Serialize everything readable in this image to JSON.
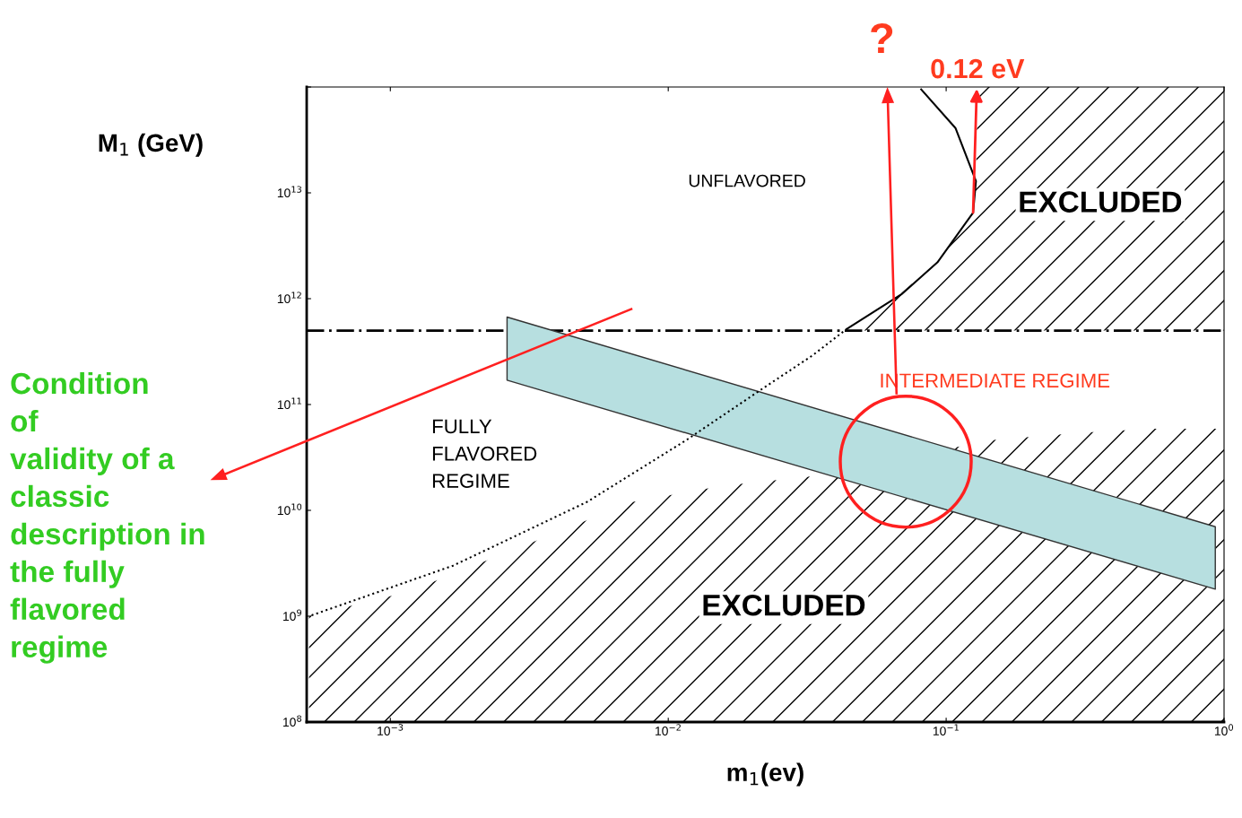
{
  "chart_data": {
    "type": "line",
    "log": "xy",
    "xlabel": "m$_{1}$(ev)",
    "ylabel": "M$_{1}$ (GeV)",
    "xlim": [
      0.0005,
      1
    ],
    "ylim": [
      100000000.0,
      100000000000000.0
    ],
    "xticks": [
      {
        "value": 0.001,
        "label": "10$^{−3}$"
      },
      {
        "value": 0.01,
        "label": "10$^{−2}$"
      },
      {
        "value": 0.1,
        "label": "10$^{−1}$"
      },
      {
        "value": 1,
        "label": "10$^{0}$"
      }
    ],
    "yticks": [
      {
        "value": 100000000.0,
        "label": "10$^{8}$"
      },
      {
        "value": 1000000000.0,
        "label": "10$^{9}$"
      },
      {
        "value": 10000000000.0,
        "label": "10$^{10}$"
      },
      {
        "value": 100000000000.0,
        "label": "10$^{11}$"
      },
      {
        "value": 1000000000000.0,
        "label": "10$^{12}$"
      },
      {
        "value": 10000000000000.0,
        "label": "10$^{13}$"
      },
      {
        "value": 100000000000000.0,
        "label": null
      }
    ],
    "grid": false,
    "legend": false,
    "series": [
      {
        "type": "area",
        "color": "#000000",
        "x": [
          0.00051,
          0.00116,
          0.0035,
          0.0074,
          0.0156,
          0.033,
          0.145,
          0.305,
          0.552,
          1.0
        ],
        "values": [
          1000000000.0,
          1700000000.0,
          5400000000.0,
          12000000000.0,
          17000000000.0,
          21000000000.0,
          46000000000.0,
          54000000000.0,
          59000000000.0,
          59000000000.0
        ]
      },
      {
        "type": "area",
        "color": "#000000",
        "x": [
          0.044,
          0.069,
          0.093,
          0.125,
          0.128,
          0.13,
          1.0
        ],
        "values": [
          520000000000.0,
          1100000000000.0,
          2200000000000.0,
          6500000000000.0,
          12900000000000.0,
          100000000000000.0,
          100000000000000.0
        ]
      },
      {
        "color": "#000000",
        "line_style": "solid",
        "x": [
          0.0813,
          0.108,
          0.128,
          0.125,
          0.093,
          0.069,
          0.044
        ],
        "values": [
          95000000000000.0,
          41000000000000.0,
          12900000000000.0,
          6500000000000.0,
          2200000000000.0,
          1100000000000.0,
          520000000000.0
        ]
      },
      {
        "color": "#000000",
        "line_style": "dotted",
        "x": [
          0.044,
          0.033,
          0.0226,
          0.0116,
          0.0051,
          0.00168,
          0.00051
        ],
        "values": [
          520000000000.0,
          290000000000.0,
          150000000000.0,
          46000000000.0,
          12000000000.0,
          3000000000.0,
          1000000000.0
        ]
      },
      {
        "color": "#b7dfe0",
        "x": [
          0.00263,
          0.93
        ],
        "values": [
          null,
          null
        ],
        "lower": [
          170000000000.0,
          1800000000.0
        ],
        "upper": [
          670000000000.0,
          7000000000.0
        ]
      }
    ],
    "ref_lines": [
      {
        "axis": "y",
        "value": 500000000000.0,
        "label": null,
        "color": "#000000",
        "line_style": "dashed"
      }
    ],
    "annotations": [
      "UNFLAVORED",
      "EXCLUDED",
      "EXCLUDED",
      "FULLY\nFLAVORED\nREGIME",
      "INTERMEDIATE REGIME",
      "?",
      {
        "text": "0.12 eV",
        "x": 0.125,
        "y": 6500000000000.0
      },
      "Condition\nof\nvalidity of a\nclassic\ndescription in\nthe fully\nflavored\nregime"
    ]
  }
}
